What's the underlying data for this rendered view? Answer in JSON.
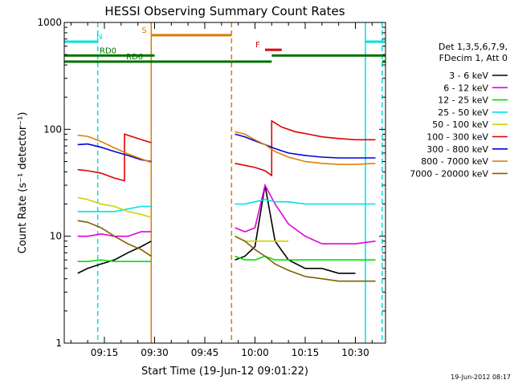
{
  "title": "HESSI Observing Summary Count Rates",
  "footer_date": "19-Jun-2012 08:17",
  "legend": {
    "header_lines": [
      "Det 1,3,5,6,7,9,",
      "FDecim 1, Att 0"
    ]
  },
  "colors": {
    "background": "#ffffff",
    "axis": "#000000",
    "night": "#00e0e0",
    "saa": "#e07800",
    "flare": "#e00000",
    "decim": "#007000"
  },
  "chart_data": {
    "type": "line",
    "title": "HESSI Observing Summary Count Rates",
    "xlabel": "Start Time (19-Jun-12 09:01:22)",
    "ylabel": "Count Rate (s⁻¹ detector⁻¹)",
    "x_unit": "time (HH:MM, 19-Jun-12)",
    "xlim": [
      "09:03",
      "10:39"
    ],
    "ylim": [
      1,
      1000
    ],
    "y_scale": "log",
    "x_ticks": [
      "09:15",
      "09:30",
      "09:45",
      "10:00",
      "10:15",
      "10:30"
    ],
    "y_ticks": [
      {
        "value": 1,
        "label": "1"
      },
      {
        "value": 10,
        "label": "10"
      },
      {
        "value": 100,
        "label": "100"
      },
      {
        "value": 1000,
        "label": "1000"
      }
    ],
    "legend_position": "right",
    "flag_bars": [
      {
        "label": "N",
        "color": "#00e0e0",
        "level": 660,
        "segments": [
          [
            "09:03",
            "09:13"
          ],
          [
            "10:33",
            "10:39"
          ]
        ]
      },
      {
        "label": "S",
        "color": "#e07800",
        "level": 760,
        "segments": [
          [
            "09:29",
            "09:53"
          ]
        ]
      },
      {
        "label": "F",
        "color": "#e00000",
        "level": 555,
        "segments": [
          [
            "10:03",
            "10:08"
          ]
        ]
      },
      {
        "label": "RD0",
        "color": "#007000",
        "level": 490,
        "segments": [
          [
            "09:03",
            "09:30"
          ],
          [
            "10:05",
            "10:39"
          ]
        ]
      },
      {
        "label": "RD6",
        "color": "#007000",
        "level": 430,
        "segments": [
          [
            "09:03",
            "09:53"
          ],
          [
            "09:53",
            "10:05"
          ],
          [
            "10:38",
            "10:39"
          ]
        ]
      }
    ],
    "vertical_markers": [
      {
        "time": "09:13",
        "color": "#00e0e0",
        "style": "dashed"
      },
      {
        "time": "09:29",
        "color": "#e07800",
        "style": "solid"
      },
      {
        "time": "09:53",
        "color": "#e07800",
        "style": "dashed"
      },
      {
        "time": "10:33",
        "color": "#00e0e0",
        "style": "solid"
      },
      {
        "time": "10:38",
        "color": "#00e0e0",
        "style": "dashed"
      }
    ],
    "series": [
      {
        "name": "3 - 6 keV",
        "color": "#000000",
        "segments": [
          {
            "x": [
              "09:07",
              "09:10",
              "09:14",
              "09:18",
              "09:22",
              "09:26",
              "09:29"
            ],
            "y": [
              4.5,
              5,
              5.5,
              6,
              7,
              8,
              9
            ]
          },
          {
            "x": [
              "09:54",
              "09:57",
              "10:00",
              "10:03",
              "10:06",
              "10:10",
              "10:15",
              "10:20",
              "10:25",
              "10:30"
            ],
            "y": [
              6,
              6.5,
              8,
              30,
              9,
              6,
              5,
              5,
              4.5,
              4.5
            ]
          }
        ]
      },
      {
        "name": "6 - 12 keV",
        "color": "#e000e0",
        "segments": [
          {
            "x": [
              "09:07",
              "09:10",
              "09:14",
              "09:18",
              "09:22",
              "09:26",
              "09:29"
            ],
            "y": [
              10,
              10,
              10.5,
              10,
              10,
              11,
              11
            ]
          },
          {
            "x": [
              "09:54",
              "09:57",
              "10:00",
              "10:03",
              "10:06",
              "10:10",
              "10:15",
              "10:20",
              "10:25",
              "10:30",
              "10:36"
            ],
            "y": [
              12,
              11,
              12,
              30,
              20,
              13,
              10,
              8.5,
              8.5,
              8.5,
              9
            ]
          }
        ]
      },
      {
        "name": "12 - 25 keV",
        "color": "#00e000",
        "segments": [
          {
            "x": [
              "09:07",
              "09:10",
              "09:14",
              "09:18",
              "09:22",
              "09:26",
              "09:29"
            ],
            "y": [
              5.8,
              5.8,
              6,
              5.8,
              5.8,
              5.8,
              5.8
            ]
          },
          {
            "x": [
              "09:54",
              "09:57",
              "10:00",
              "10:03",
              "10:06",
              "10:10",
              "10:15",
              "10:20",
              "10:25",
              "10:30",
              "10:36"
            ],
            "y": [
              6.5,
              6,
              6,
              6.5,
              6,
              6,
              6,
              6,
              6,
              6,
              6
            ]
          }
        ]
      },
      {
        "name": "25 - 50 keV",
        "color": "#00e0e0",
        "segments": [
          {
            "x": [
              "09:07",
              "09:10",
              "09:14",
              "09:18",
              "09:22",
              "09:26",
              "09:29"
            ],
            "y": [
              17,
              17,
              17,
              17,
              18,
              19,
              19
            ]
          },
          {
            "x": [
              "09:54",
              "09:57",
              "10:00",
              "10:03",
              "10:06",
              "10:10",
              "10:15",
              "10:20",
              "10:25",
              "10:30",
              "10:36"
            ],
            "y": [
              20,
              20,
              21,
              22,
              21,
              21,
              20,
              20,
              20,
              20,
              20
            ]
          }
        ]
      },
      {
        "name": "50 - 100 keV",
        "color": "#d0d000",
        "segments": [
          {
            "x": [
              "09:07",
              "09:10",
              "09:14",
              "09:18",
              "09:22",
              "09:26",
              "09:29"
            ],
            "y": [
              23,
              22,
              20,
              19,
              17,
              16,
              15
            ]
          },
          {
            "x": [
              "09:54",
              "09:57",
              "10:00",
              "10:03",
              "10:06",
              "10:10"
            ],
            "y": [
              10,
              9,
              9,
              9,
              9,
              9
            ]
          }
        ]
      },
      {
        "name": "100 - 300 keV",
        "color": "#e00000",
        "segments": [
          {
            "x": [
              "09:07",
              "09:10",
              "09:14",
              "09:18",
              "09:21",
              "09:21",
              "09:25",
              "09:29"
            ],
            "y": [
              42,
              41,
              39,
              35,
              33,
              90,
              82,
              75
            ]
          },
          {
            "x": [
              "09:54",
              "09:57",
              "10:00",
              "10:03",
              "10:05",
              "10:05",
              "10:08",
              "10:12",
              "10:16",
              "10:20",
              "10:25",
              "10:30",
              "10:36"
            ],
            "y": [
              48,
              46,
              44,
              41,
              37,
              120,
              105,
              95,
              90,
              85,
              82,
              80,
              80
            ]
          }
        ]
      },
      {
        "name": "300 - 800 keV",
        "color": "#0000e0",
        "segments": [
          {
            "x": [
              "09:07",
              "09:10",
              "09:14",
              "09:18",
              "09:22",
              "09:26",
              "09:29"
            ],
            "y": [
              72,
              73,
              68,
              62,
              57,
              52,
              50
            ]
          },
          {
            "x": [
              "09:54",
              "09:57",
              "10:00",
              "10:03",
              "10:06",
              "10:10",
              "10:15",
              "10:20",
              "10:25",
              "10:30",
              "10:36"
            ],
            "y": [
              90,
              85,
              78,
              72,
              66,
              60,
              57,
              55,
              54,
              54,
              54
            ]
          }
        ]
      },
      {
        "name": "800 - 7000 keV",
        "color": "#e08000",
        "segments": [
          {
            "x": [
              "09:07",
              "09:10",
              "09:14",
              "09:18",
              "09:22",
              "09:26",
              "09:29"
            ],
            "y": [
              88,
              86,
              77,
              67,
              59,
              53,
              49
            ]
          },
          {
            "x": [
              "09:54",
              "09:57",
              "10:00",
              "10:03",
              "10:06",
              "10:10",
              "10:15",
              "10:20",
              "10:25",
              "10:30",
              "10:36"
            ],
            "y": [
              95,
              90,
              80,
              72,
              62,
              55,
              50,
              48,
              47,
              47,
              48
            ]
          }
        ]
      },
      {
        "name": "7000 - 20000 keV",
        "color": "#806000",
        "segments": [
          {
            "x": [
              "09:07",
              "09:10",
              "09:14",
              "09:18",
              "09:22",
              "09:26",
              "09:29"
            ],
            "y": [
              14,
              13.5,
              12,
              10,
              8.5,
              7.5,
              6.5
            ]
          },
          {
            "x": [
              "09:54",
              "09:57",
              "10:00",
              "10:03",
              "10:06",
              "10:10",
              "10:15",
              "10:20",
              "10:25",
              "10:30",
              "10:36"
            ],
            "y": [
              10,
              9,
              7.5,
              6.5,
              5.5,
              4.8,
              4.2,
              4,
              3.8,
              3.8,
              3.8
            ]
          }
        ]
      }
    ]
  }
}
